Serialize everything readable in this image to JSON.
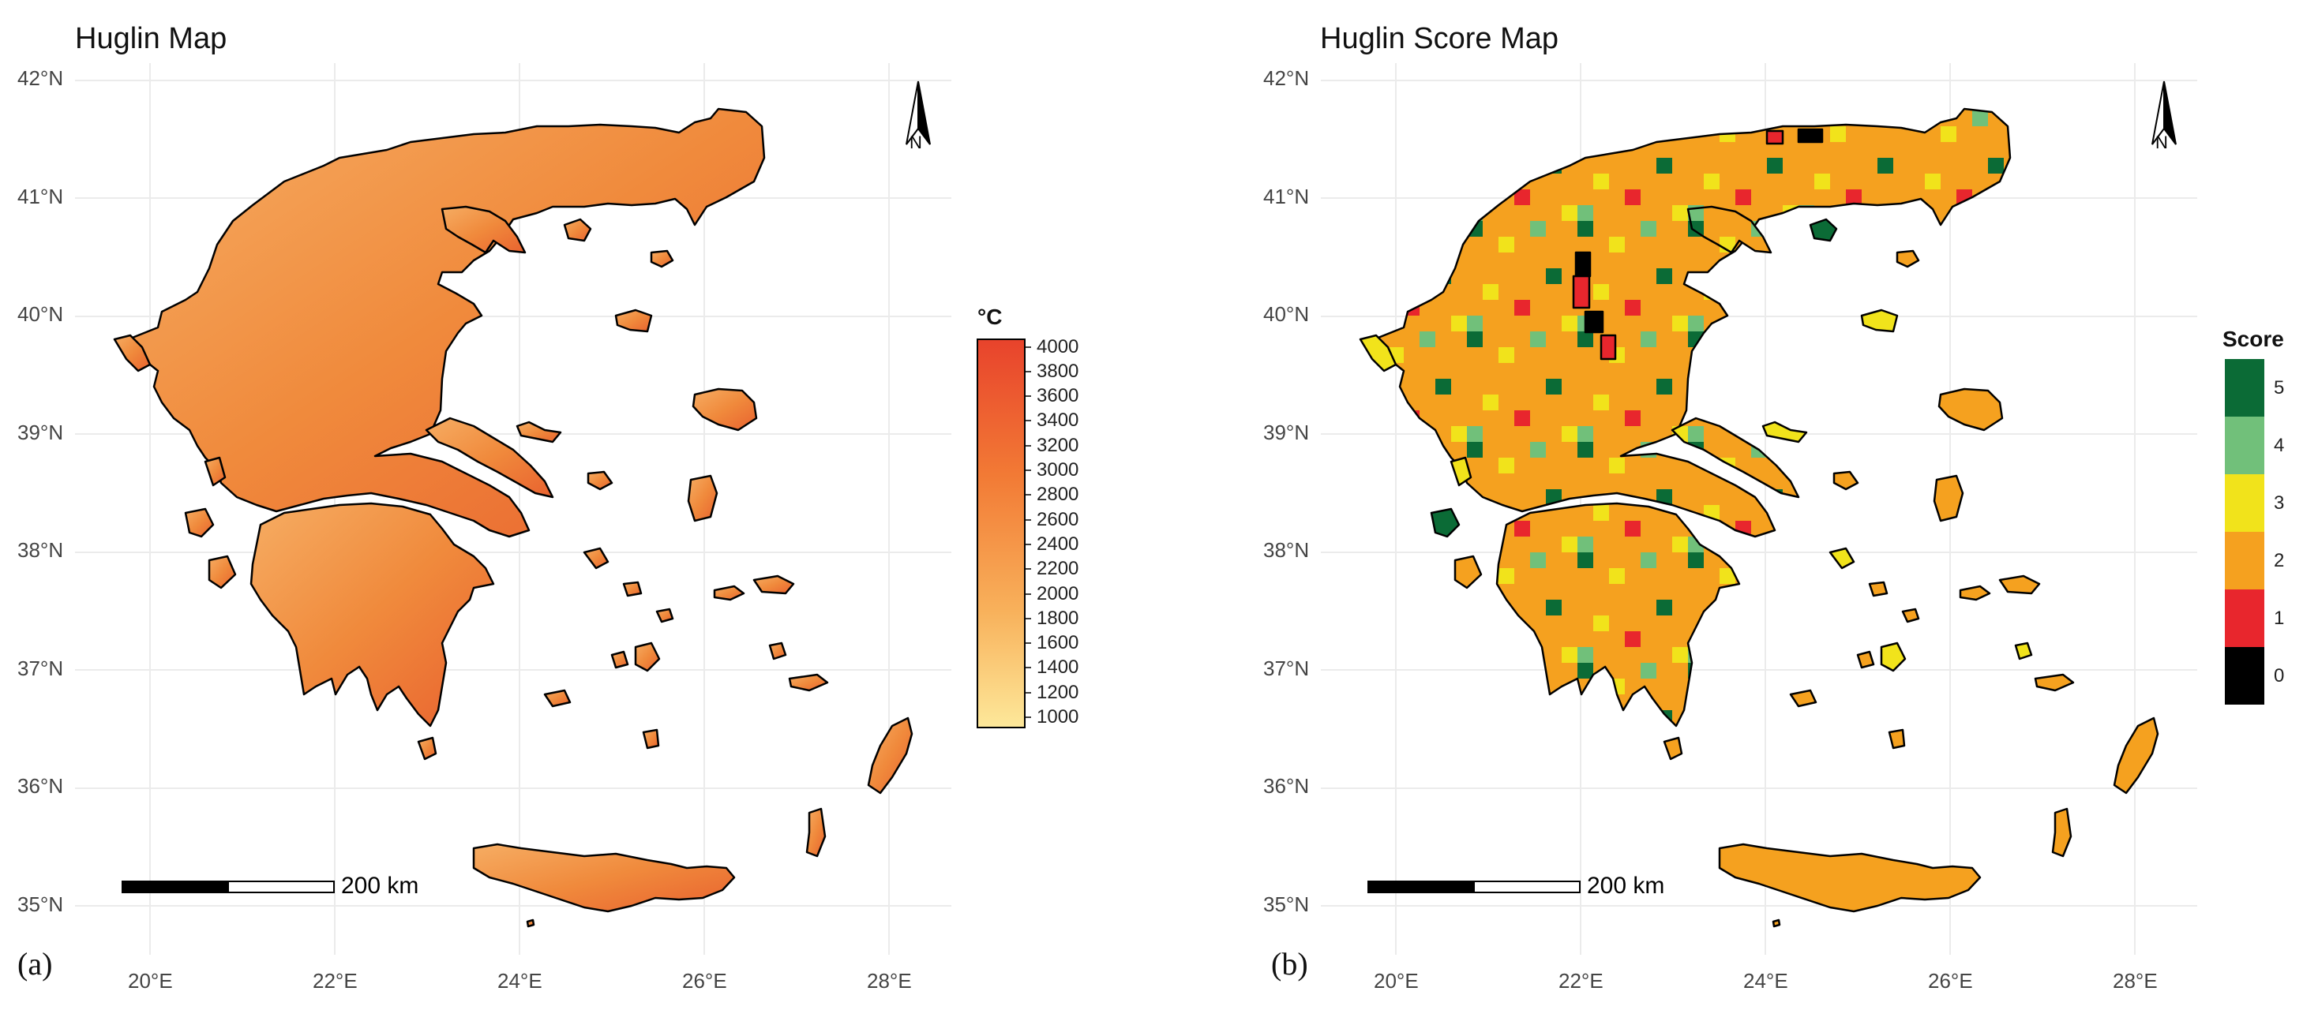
{
  "panels": [
    {
      "title": "Huglin Map",
      "letter": "(a)",
      "north_label": "N",
      "scale_label": "200 km",
      "legend": {
        "title": "°C",
        "ticks": [
          "4000",
          "3800",
          "3600",
          "3400",
          "3200",
          "3000",
          "2800",
          "2600",
          "2400",
          "2200",
          "2000",
          "1800",
          "1600",
          "1400",
          "1200",
          "1000"
        ],
        "color_low": "#fde89a",
        "color_high": "#e8432c"
      }
    },
    {
      "title": "Huglin Score Map",
      "letter": "(b)",
      "north_label": "N",
      "scale_label": "200 km",
      "legend": {
        "title": "Score",
        "classes": [
          {
            "label": "5",
            "color": "#0b6b36"
          },
          {
            "label": "4",
            "color": "#71c07a"
          },
          {
            "label": "3",
            "color": "#f1e31b"
          },
          {
            "label": "2",
            "color": "#f5a11f"
          },
          {
            "label": "1",
            "color": "#e8262d"
          },
          {
            "label": "0",
            "color": "#000000"
          }
        ]
      }
    }
  ],
  "axes": {
    "lat_labels": [
      "42°N",
      "41°N",
      "40°N",
      "39°N",
      "38°N",
      "37°N",
      "36°N",
      "35°N"
    ],
    "lon_labels": [
      "20°E",
      "22°E",
      "24°E",
      "26°E",
      "28°E"
    ]
  },
  "colors": {
    "land_fill_a": "#f39a4a",
    "land_fill_b": "#f5a11f",
    "grid": "#ebebeb",
    "outline": "#000000"
  }
}
